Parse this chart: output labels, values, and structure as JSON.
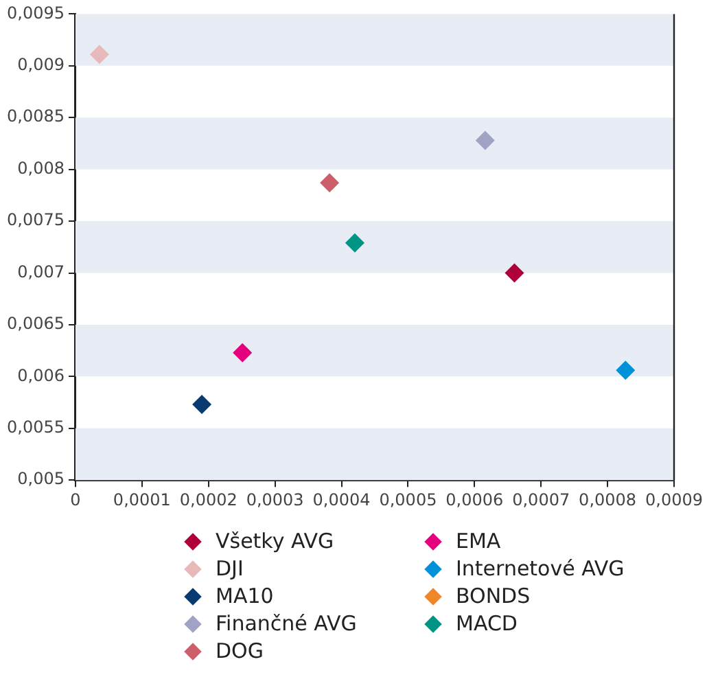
{
  "chart_data": {
    "type": "scatter",
    "marker": "diamond",
    "legend": "bottom",
    "xlim": [
      0,
      0.0009
    ],
    "xticks": [
      0,
      {
        "value": 0.0001,
        "label": "0,0001"
      },
      {
        "value": 0.0002,
        "label": "0,0002"
      },
      {
        "value": 0.0003,
        "label": "0,0003"
      },
      {
        "value": 0.0004,
        "label": "0,0004"
      },
      {
        "value": 0.0005,
        "label": "0,0005"
      },
      {
        "value": 0.0006,
        "label": "0,0006"
      },
      {
        "value": 0.0007,
        "label": "0,0007"
      },
      {
        "value": 0.0008,
        "label": "0,0008"
      },
      {
        "value": 0.0009,
        "label": "0,0009"
      }
    ],
    "ylim": [
      0.005,
      0.0095
    ],
    "yticks": [
      {
        "value": 0.005,
        "label": "0,005"
      },
      {
        "value": 0.0055,
        "label": "0,0055"
      },
      {
        "value": 0.006,
        "label": "0,006"
      },
      {
        "value": 0.0065,
        "label": "0,0065"
      },
      {
        "value": 0.007,
        "label": "0,007"
      },
      {
        "value": 0.0075,
        "label": "0,0075"
      },
      {
        "value": 0.008,
        "label": "0,008"
      },
      {
        "value": 0.0085,
        "label": "0,0085"
      },
      {
        "value": 0.009,
        "label": "0,009"
      },
      {
        "value": 0.0095,
        "label": "0,0095"
      }
    ],
    "series": [
      {
        "name": "Všetky AVG",
        "color": "#b0003a",
        "x": [
          0.00066
        ],
        "values": [
          0.007
        ]
      },
      {
        "name": "DJI",
        "color": "#e8b9b9",
        "x": [
          3.6e-05
        ],
        "values": [
          0.00911
        ]
      },
      {
        "name": "MA10",
        "color": "#0a3a72",
        "x": [
          0.00019
        ],
        "values": [
          0.00573
        ]
      },
      {
        "name": "Finančné AVG",
        "color": "#a0a3c4",
        "x": [
          0.000616
        ],
        "values": [
          0.00828
        ]
      },
      {
        "name": "DOG",
        "color": "#cc5f6a",
        "x": [
          0.000382
        ],
        "values": [
          0.00787
        ]
      },
      {
        "name": "EMA",
        "color": "#e5007e",
        "x": [
          0.000251
        ],
        "values": [
          0.00623
        ]
      },
      {
        "name": "Internetové AVG",
        "color": "#0092d8",
        "x": [
          0.000827
        ],
        "values": [
          0.00606
        ]
      },
      {
        "name": "BONDS",
        "color": "#f0862a",
        "x": [
          null
        ],
        "values": [
          null
        ]
      },
      {
        "name": "MACD",
        "color": "#009485",
        "x": [
          0.00042
        ],
        "values": [
          0.00729
        ]
      }
    ]
  }
}
